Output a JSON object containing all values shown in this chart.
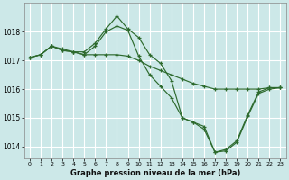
{
  "title": "Graphe pression niveau de la mer (hPa)",
  "bg_color": "#cce8e8",
  "grid_color": "#ffffff",
  "line_color": "#2d6a2d",
  "xlim": [
    -0.5,
    23.5
  ],
  "ylim": [
    1013.6,
    1019.0
  ],
  "yticks": [
    1014,
    1015,
    1016,
    1017,
    1018
  ],
  "xticks": [
    0,
    1,
    2,
    3,
    4,
    5,
    6,
    7,
    8,
    9,
    10,
    11,
    12,
    13,
    14,
    15,
    16,
    17,
    18,
    19,
    20,
    21,
    22,
    23
  ],
  "series": [
    {
      "x": [
        0,
        1,
        2,
        3,
        4,
        5,
        6,
        7,
        8,
        9,
        10,
        11,
        12,
        13,
        14,
        15,
        16,
        17,
        18,
        19,
        20,
        21,
        22,
        23
      ],
      "y": [
        1017.1,
        1017.2,
        1017.5,
        1017.4,
        1017.3,
        1017.3,
        1017.6,
        1018.1,
        1018.55,
        1018.1,
        1017.8,
        1017.2,
        1016.9,
        1016.3,
        1015.0,
        1014.85,
        1014.7,
        1013.8,
        1013.9,
        1014.2,
        1015.1,
        1015.9,
        1016.05,
        1016.05
      ]
    },
    {
      "x": [
        0,
        1,
        2,
        3,
        4,
        5,
        6,
        7,
        8,
        9,
        10,
        11,
        12,
        13,
        14,
        15,
        16,
        17,
        18,
        19,
        20,
        21,
        22,
        23
      ],
      "y": [
        1017.1,
        1017.2,
        1017.5,
        1017.35,
        1017.3,
        1017.2,
        1017.2,
        1017.2,
        1017.2,
        1017.15,
        1017.0,
        1016.8,
        1016.65,
        1016.5,
        1016.35,
        1016.2,
        1016.1,
        1016.0,
        1016.0,
        1016.0,
        1016.0,
        1016.0,
        1016.05,
        1016.05
      ]
    },
    {
      "x": [
        0,
        1,
        2,
        3,
        4,
        5,
        6,
        7,
        8,
        9,
        10,
        11,
        12,
        13,
        14,
        15,
        16,
        17,
        18,
        19,
        20,
        21,
        22,
        23
      ],
      "y": [
        1017.1,
        1017.2,
        1017.5,
        1017.35,
        1017.3,
        1017.2,
        1017.5,
        1018.0,
        1018.2,
        1018.05,
        1017.15,
        1016.5,
        1016.1,
        1015.7,
        1015.0,
        1014.85,
        1014.6,
        1013.8,
        1013.85,
        1014.15,
        1015.05,
        1015.85,
        1016.0,
        1016.05
      ]
    }
  ]
}
